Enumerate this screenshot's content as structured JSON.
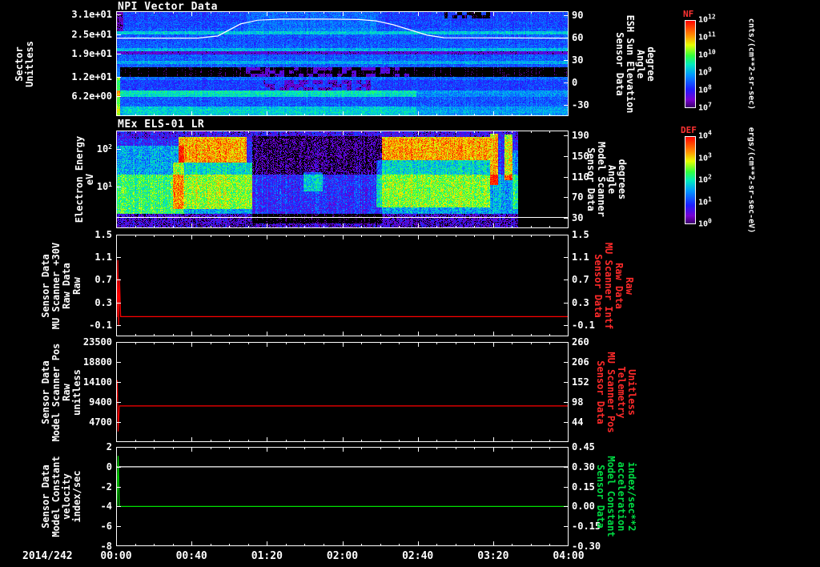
{
  "footer": {
    "date_label": "2014/242"
  },
  "time_axis": {
    "ticks": [
      "00:00",
      "00:40",
      "01:20",
      "02:00",
      "02:40",
      "03:20",
      "04:00"
    ],
    "range_hours": [
      0,
      4
    ]
  },
  "palette": {
    "axis_white": "#ffffff",
    "series_red": "#ff0000",
    "series_green": "#00e000",
    "label_red": "#ff2a2a",
    "label_green": "#00dd44",
    "colorbar_title": "#ff3333"
  },
  "chart_data": [
    {
      "type": "heatmap",
      "title": "NPI Vector Data",
      "left_axis": {
        "label_lines": [
          "Sector",
          "Unitless"
        ],
        "range": [
          32,
          0
        ],
        "ticks": [
          "3.1e+01",
          "2.5e+01",
          "1.9e+01",
          "1.2e+01",
          "6.2e+00"
        ],
        "tick_values": [
          31,
          25,
          19,
          12,
          6.2
        ]
      },
      "right_axis": {
        "label_lines": [
          "Sensor Data",
          "ESH Sun Elevation",
          "Angle",
          "degree"
        ],
        "range": [
          95,
          -45
        ],
        "ticks": [
          "90",
          "60",
          "30",
          "0",
          "-30"
        ],
        "tick_values": [
          90,
          60,
          30,
          0,
          -30
        ],
        "color": "#ffffff"
      },
      "overlay_line": {
        "color": "#ffffff",
        "axis": "right",
        "points": [
          [
            0,
            59
          ],
          [
            0.72,
            59
          ],
          [
            0.9,
            62
          ],
          [
            1.0,
            70
          ],
          [
            1.1,
            78
          ],
          [
            1.25,
            83
          ],
          [
            1.45,
            84.5
          ],
          [
            1.9,
            84.5
          ],
          [
            2.15,
            84
          ],
          [
            2.3,
            82
          ],
          [
            2.45,
            77
          ],
          [
            2.6,
            70
          ],
          [
            2.75,
            63
          ],
          [
            2.9,
            59.5
          ],
          [
            4,
            59
          ]
        ]
      },
      "rows": 32,
      "row_profile": [
        0.26,
        0.27,
        0.26,
        0.28,
        0.27,
        0.3,
        0.45,
        0.3,
        0.28,
        0.29,
        0.3,
        0.42,
        0.12,
        0.3,
        0.3,
        0.4,
        0.3,
        0.02,
        0.02,
        0.02,
        0.32,
        0.26,
        0.26,
        0.26,
        0.5,
        0.48,
        0.3,
        0.29,
        0.3,
        0.38,
        0.4,
        0.38
      ],
      "features": [
        {
          "t": [
            1.1,
            2.6
          ],
          "rows": [
            17,
            19
          ],
          "i": 0.1,
          "blob": true
        },
        {
          "t": [
            1.3,
            2.3
          ],
          "rows": [
            21,
            23
          ],
          "i": -0.15,
          "blob": true
        },
        {
          "t": [
            0,
            0.03
          ],
          "rows": [
            17,
            31
          ],
          "i": 0.32
        },
        {
          "t": [
            0,
            0.06
          ],
          "rows": [
            0,
            5
          ],
          "i": -0.2
        },
        {
          "t": [
            2.9,
            3.3
          ],
          "rows": [
            0,
            1
          ],
          "i": -0.24,
          "blob": true
        },
        {
          "t": [
            1.15,
            2.3
          ],
          "rows": [
            0,
            5
          ],
          "i": 0.05
        },
        {
          "t": [
            2.65,
            4.0
          ],
          "rows": [
            24,
            25
          ],
          "i": -0.12
        },
        {
          "t": [
            0.05,
            2.65
          ],
          "rows": [
            29,
            31
          ],
          "i": 0.07
        }
      ],
      "colorbar": {
        "title": "NF",
        "tick_labels": [
          "10^12",
          "10^11",
          "10^10",
          "10^9",
          "10^8",
          "10^7"
        ],
        "unit": "cnts/(cm**2-sr-sec)"
      }
    },
    {
      "type": "heatmap",
      "title": "MEx ELS-01 LR",
      "left_axis": {
        "label_lines": [
          "Electron Energy",
          "eV"
        ],
        "range": [
          300,
          0.8
        ],
        "log": true,
        "ticks": [
          "10^2",
          "10^1"
        ],
        "tick_values": [
          100,
          10
        ]
      },
      "right_axis": {
        "label_lines": [
          "Sensor Data",
          "Model Scanner",
          "Angle",
          "degrees"
        ],
        "range": [
          200,
          10
        ],
        "ticks": [
          "190",
          "150",
          "110",
          "70",
          "30"
        ],
        "tick_values": [
          190,
          150,
          110,
          70,
          30
        ],
        "color": "#ffffff"
      },
      "overlay_line": {
        "color": "#ffffff",
        "frac": 0.885
      },
      "data_end_hours": 3.55,
      "background_bands": [
        {
          "f": [
            0,
            0.08
          ],
          "i": 0.17
        },
        {
          "f": [
            0.08,
            0.45
          ],
          "i": 0.22
        },
        {
          "f": [
            0.45,
            0.85
          ],
          "i": 0.4
        },
        {
          "f": [
            0.85,
            1.01
          ],
          "i": 0.12
        }
      ],
      "features": [
        {
          "t": [
            0,
            0.6
          ],
          "f": [
            0.15,
            0.85
          ],
          "i": 0.18
        },
        {
          "t": [
            0.55,
            1.15
          ],
          "f": [
            0.06,
            0.32
          ],
          "i": 0.6
        },
        {
          "t": [
            0.5,
            1.2
          ],
          "f": [
            0.32,
            0.8
          ],
          "i": 0.26
        },
        {
          "t": [
            1.2,
            2.35
          ],
          "f": [
            0.05,
            0.95
          ],
          "i": -0.17
        },
        {
          "t": [
            1.65,
            1.82
          ],
          "f": [
            0.42,
            0.62
          ],
          "i": 0.22
        },
        {
          "t": [
            2.35,
            3.3
          ],
          "f": [
            0.06,
            0.3
          ],
          "i": 0.6
        },
        {
          "t": [
            2.3,
            3.3
          ],
          "f": [
            0.3,
            0.78
          ],
          "i": 0.25
        },
        {
          "t": [
            3.3,
            3.37
          ],
          "f": [
            0.03,
            0.55
          ],
          "i": 0.58
        },
        {
          "t": [
            3.43,
            3.5
          ],
          "f": [
            0.04,
            0.5
          ],
          "i": 0.52
        },
        {
          "t": [
            3.5,
            3.55
          ],
          "f": [
            0.2,
            0.8
          ],
          "i": 0.15
        }
      ],
      "colorbar": {
        "title": "DEF",
        "tick_labels": [
          "10^4",
          "10^3",
          "10^2",
          "10^1",
          "10^0"
        ],
        "unit": "ergs/(cm**2-sr-sec-eV)"
      }
    },
    {
      "type": "line",
      "left_axis": {
        "label_lines": [
          "Sensor Data",
          "MU Scanner +30V",
          "Raw Data",
          "Raw"
        ],
        "range": [
          1.5,
          -0.3
        ],
        "ticks": [
          "1.5",
          "1.1",
          "0.7",
          "0.3",
          "-0.1"
        ],
        "tick_values": [
          1.5,
          1.1,
          0.7,
          0.3,
          -0.1
        ]
      },
      "right_axis": {
        "label_lines": [
          "Sensor Data",
          "MU Scanner Intf",
          "Raw Data",
          "Raw"
        ],
        "range": [
          1.5,
          -0.3
        ],
        "ticks": [
          "1.5",
          "1.1",
          "0.7",
          "0.3",
          "-0.1"
        ],
        "tick_values": [
          1.5,
          1.1,
          0.7,
          0.3,
          -0.1
        ],
        "color": "#ff2a2a"
      },
      "series": [
        {
          "color": "#ff0000",
          "axis": "left",
          "points": [
            [
              0,
              0.05
            ],
            [
              0.008,
              0.05
            ],
            [
              0.015,
              1.05
            ],
            [
              0.022,
              -0.12
            ],
            [
              0.03,
              0.72
            ],
            [
              0.04,
              0.05
            ],
            [
              4,
              0.05
            ]
          ]
        }
      ]
    },
    {
      "type": "line",
      "left_axis": {
        "label_lines": [
          "Sensor Data",
          "Model Scanner Pos",
          "Raw",
          "unitless"
        ],
        "range": [
          23500,
          0
        ],
        "ticks": [
          "23500",
          "18800",
          "14100",
          "9400",
          "4700"
        ],
        "tick_values": [
          23500,
          18800,
          14100,
          9400,
          4700
        ]
      },
      "right_axis": {
        "label_lines": [
          "Sensor Data",
          "MU Scanner Pos",
          "Telemetry",
          "Unitless"
        ],
        "range": [
          260,
          -10
        ],
        "ticks": [
          "260",
          "206",
          "152",
          "98",
          "44"
        ],
        "tick_values": [
          260,
          206,
          152,
          98,
          44
        ],
        "color": "#ff2a2a"
      },
      "series": [
        {
          "color": "#ff0000",
          "axis": "left",
          "points": [
            [
              0,
              8500
            ],
            [
              0.01,
              14500
            ],
            [
              0.018,
              2500
            ],
            [
              0.028,
              8500
            ],
            [
              4,
              8500
            ]
          ]
        }
      ]
    },
    {
      "type": "line",
      "left_axis": {
        "label_lines": [
          "Sensor Data",
          "Model Constant",
          "velocity",
          "index/sec"
        ],
        "range": [
          2,
          -8
        ],
        "ticks": [
          "2",
          "0",
          "-2",
          "-4",
          "-6",
          "-8"
        ],
        "tick_values": [
          2,
          0,
          -2,
          -4,
          -6,
          -8
        ]
      },
      "right_axis": {
        "label_lines": [
          "Sensor Data",
          "Model Constant",
          "acceleration",
          "index/sec**2"
        ],
        "range": [
          0.45,
          -0.3
        ],
        "ticks": [
          "0.45",
          "0.30",
          "0.15",
          "0.00",
          "-0.15",
          "-0.30"
        ],
        "tick_values": [
          0.45,
          0.3,
          0.15,
          0.0,
          -0.15,
          -0.3
        ],
        "color": "#00dd44"
      },
      "series": [
        {
          "color": "#ffffff",
          "axis": "left",
          "points": [
            [
              0,
              0
            ],
            [
              4,
              0
            ]
          ]
        },
        {
          "color": "#00e000",
          "axis": "left",
          "points": [
            [
              0,
              -4
            ],
            [
              0.008,
              -4
            ],
            [
              0.018,
              1.1
            ],
            [
              0.028,
              -4
            ],
            [
              4,
              -4
            ]
          ]
        }
      ]
    }
  ]
}
